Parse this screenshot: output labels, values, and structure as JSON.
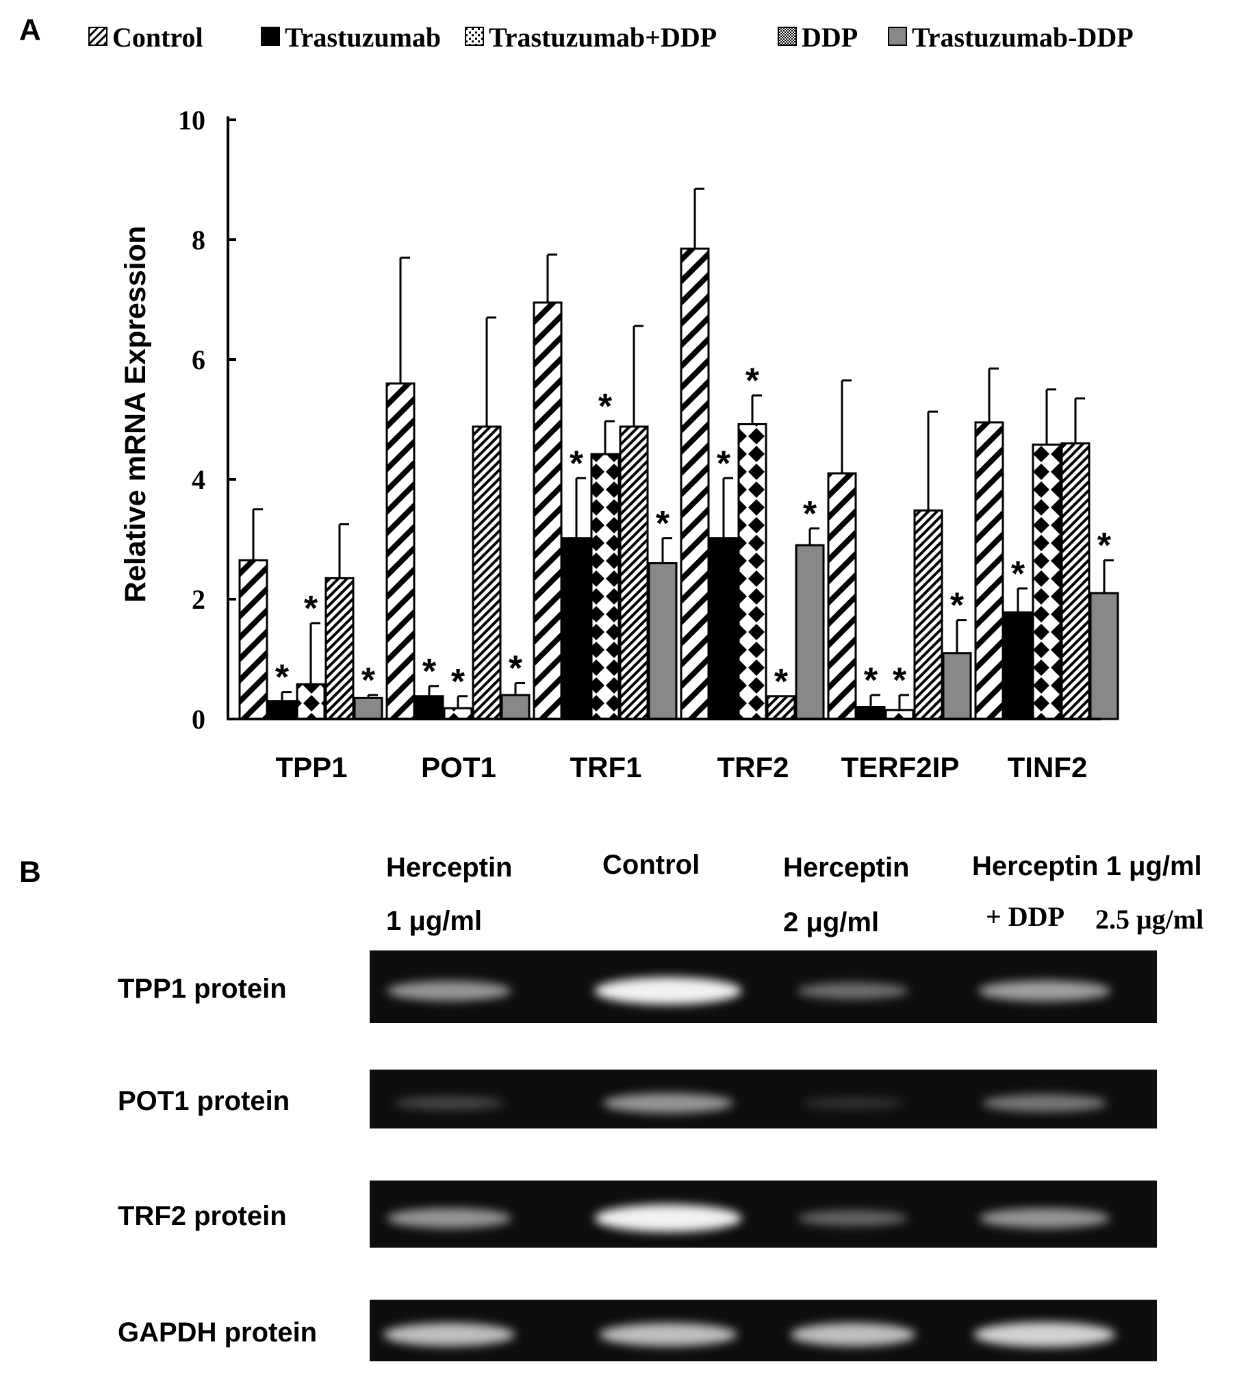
{
  "panels": {
    "a": {
      "letter": "A"
    },
    "b": {
      "letter": "B"
    }
  },
  "colors": {
    "trastuzumab": "#000000",
    "trastuzumab_ddp_combined": "#888888",
    "gel_background": "#0d0d0d",
    "band": "#f2f2f2"
  },
  "chart_data": {
    "type": "bar",
    "title": "",
    "xlabel": "",
    "ylabel": "Relative mRNA Expression",
    "ylim": [
      0,
      10
    ],
    "yticks": [
      0,
      2,
      4,
      6,
      8,
      10
    ],
    "grid": false,
    "legend_position": "top",
    "categories": [
      "TPP1",
      "POT1",
      "TRF1",
      "TRF2",
      "TERF2IP",
      "TINF2"
    ],
    "series": [
      {
        "name": "Control",
        "pattern": "diagonal-stripes",
        "values": [
          2.65,
          5.6,
          6.95,
          7.85,
          4.1,
          4.95
        ],
        "errors": [
          0.85,
          2.1,
          0.8,
          1.0,
          1.55,
          0.9
        ],
        "significant": [
          false,
          false,
          false,
          false,
          false,
          false
        ]
      },
      {
        "name": "Trastuzumab",
        "pattern": "solid-black",
        "values": [
          0.3,
          0.38,
          3.02,
          3.02,
          0.2,
          1.78
        ],
        "errors": [
          0.15,
          0.17,
          1.0,
          1.0,
          0.2,
          0.4
        ],
        "significant": [
          true,
          true,
          true,
          true,
          true,
          true
        ]
      },
      {
        "name": "Trastuzumab+DDP",
        "pattern": "checker",
        "values": [
          0.58,
          0.18,
          4.42,
          4.92,
          0.15,
          4.58
        ],
        "errors": [
          1.02,
          0.2,
          0.55,
          0.48,
          0.25,
          0.92
        ],
        "significant": [
          true,
          true,
          true,
          true,
          true,
          false
        ]
      },
      {
        "name": "DDP",
        "pattern": "dense-hatch",
        "values": [
          2.35,
          4.88,
          4.88,
          0.38,
          3.48,
          4.6
        ],
        "errors": [
          0.9,
          1.82,
          1.68,
          0.0,
          1.65,
          0.75
        ],
        "significant": [
          false,
          false,
          false,
          true,
          false,
          false
        ]
      },
      {
        "name": "Trastuzumab-DDP",
        "pattern": "solid-gray",
        "values": [
          0.35,
          0.4,
          2.6,
          2.9,
          1.1,
          2.1
        ],
        "errors": [
          0.05,
          0.2,
          0.42,
          0.28,
          0.55,
          0.55
        ],
        "significant": [
          true,
          true,
          true,
          true,
          true,
          true
        ]
      }
    ],
    "significance_marker": "*"
  },
  "blot": {
    "columns": [
      {
        "line1": "Herceptin",
        "line2": "1 μg/ml"
      },
      {
        "line1": "Control",
        "line2": ""
      },
      {
        "line1": "Herceptin",
        "line2": "2 μg/ml"
      },
      {
        "line1": "Herceptin 1 μg/ml",
        "line2_prefix": "+ DDP",
        "line2": "2.5 μg/ml"
      }
    ],
    "rows": [
      {
        "label": "TPP1 protein",
        "intensity": [
          0.55,
          1.0,
          0.35,
          0.6
        ]
      },
      {
        "label": "POT1 protein",
        "intensity": [
          0.15,
          0.55,
          0.05,
          0.4
        ]
      },
      {
        "label": "TRF2 protein",
        "intensity": [
          0.55,
          1.0,
          0.3,
          0.55
        ]
      },
      {
        "label": "GAPDH protein",
        "intensity": [
          0.75,
          0.75,
          0.75,
          0.85
        ]
      }
    ]
  }
}
